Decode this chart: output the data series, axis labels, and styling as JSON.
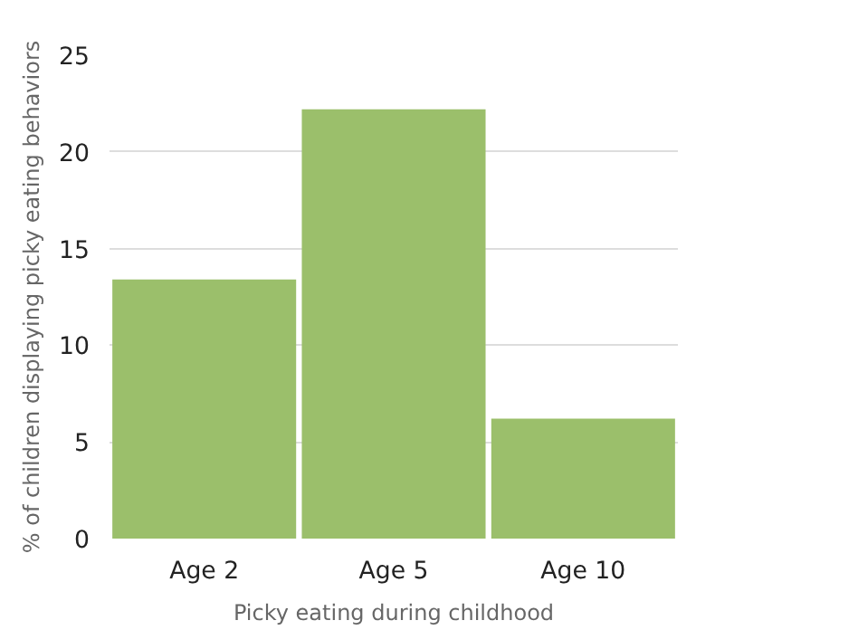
{
  "chart_data": {
    "type": "bar",
    "xlabel": "Picky eating during childhood",
    "ylabel": "% of children displaying picky eating behaviors",
    "categories": [
      "Age 2",
      "Age 5",
      "Age 10"
    ],
    "values": [
      13.4,
      22.2,
      6.2
    ],
    "color": "#9bbf6b",
    "ylim": [
      0,
      25
    ],
    "yticks": [
      0,
      5,
      10,
      15,
      20,
      25
    ],
    "grid": "y"
  }
}
